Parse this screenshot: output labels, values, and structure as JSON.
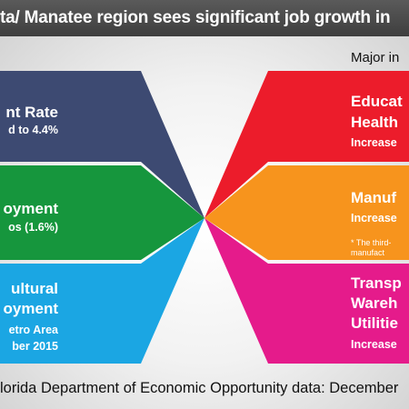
{
  "title": "ta/ Manatee region sees significant job growth in",
  "major_label": "Major in",
  "footer": "lorida Department of Economic Opportunity data: December",
  "colors": {
    "navy": "#3d4a72",
    "green": "#16963d",
    "blue": "#1ba6e3",
    "red": "#ec1c2b",
    "orange": "#f7941d",
    "magenta": "#e51b8b",
    "titlebar": "#4a4a4a"
  },
  "left_boxes": [
    {
      "name": "unemployment-rate",
      "lines": [
        "nt Rate",
        "d to 4.4%"
      ]
    },
    {
      "name": "employment",
      "lines": [
        "oyment",
        "os (1.6%)"
      ]
    },
    {
      "name": "agricultural-employment",
      "lines": [
        "ultural",
        "oyment",
        "etro Area",
        "ber 2015"
      ]
    }
  ],
  "right_boxes": [
    {
      "name": "education-health",
      "lines": [
        "Educat",
        "Health",
        "Increase"
      ]
    },
    {
      "name": "manufacturing",
      "lines": [
        "Manuf",
        "Increase",
        "* The third-",
        "manufact"
      ]
    },
    {
      "name": "transportation",
      "lines": [
        "Transp",
        "Wareh",
        "Utilitie",
        "Increase"
      ]
    }
  ]
}
